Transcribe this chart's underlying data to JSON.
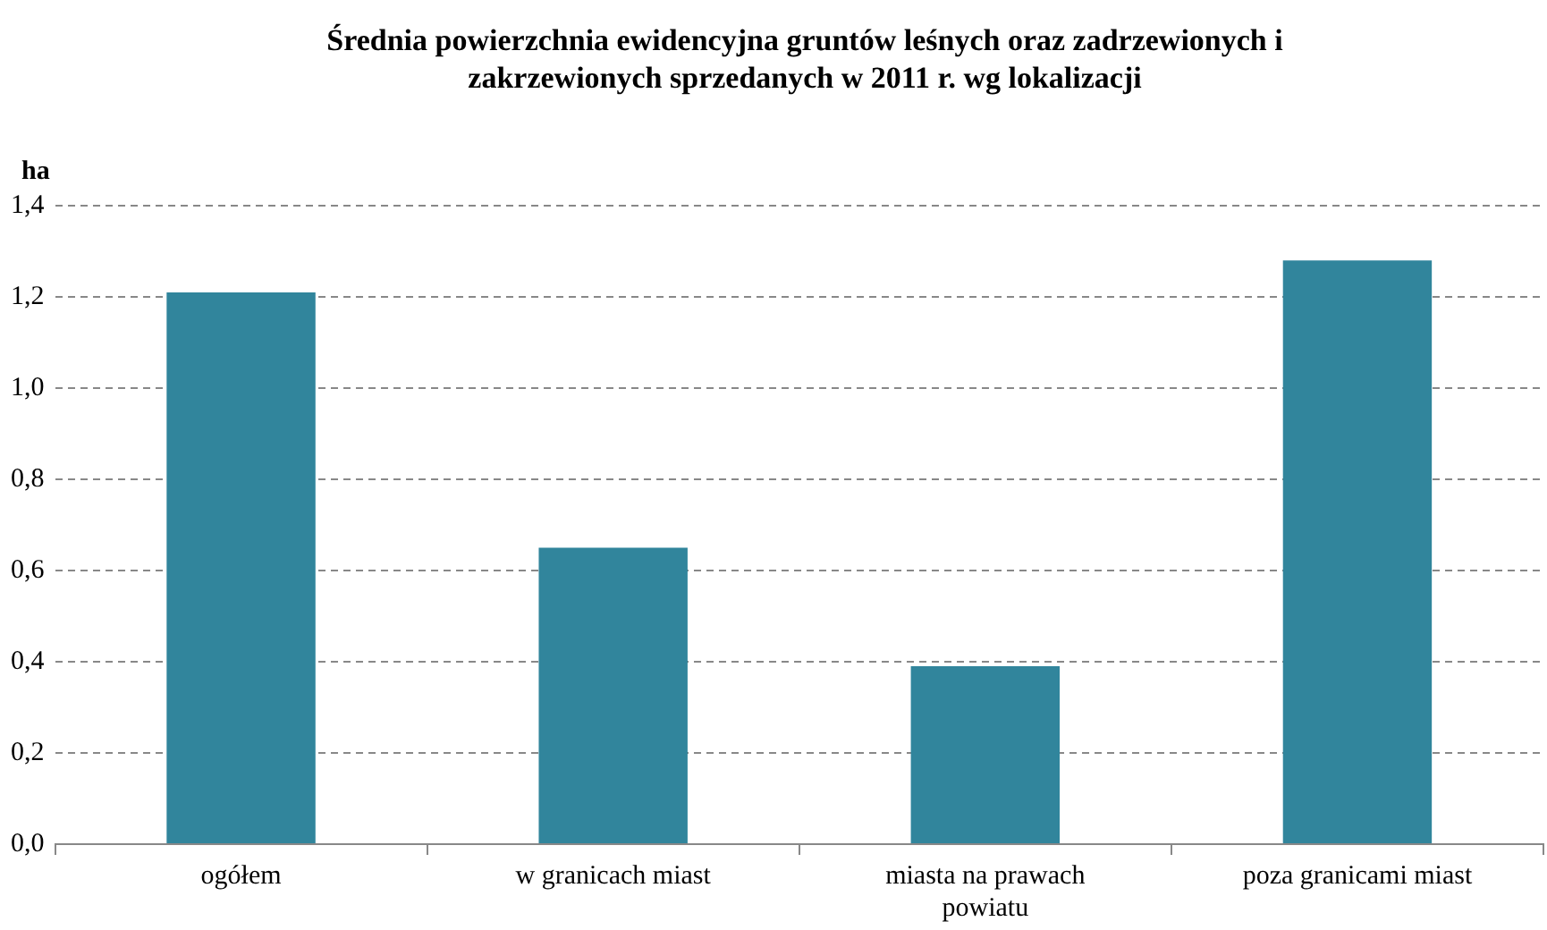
{
  "chart_data": {
    "type": "bar",
    "title": "Średnia powierzchnia ewidencyjna gruntów leśnych oraz zadrzewionych i zakrzewionych sprzedanych w 2011 r. wg lokalizacji",
    "ylabel": "ha",
    "categories": [
      "ogółem",
      "w granicach miast",
      "miasta na prawach powiatu",
      "poza granicami miast"
    ],
    "values": [
      1.21,
      0.65,
      0.39,
      1.28
    ],
    "color": "#31859c",
    "ylim": [
      0,
      1.4
    ],
    "yticks": [
      {
        "value": 0,
        "label": "0,0"
      },
      {
        "value": 0.2,
        "label": "0,2"
      },
      {
        "value": 0.4,
        "label": "0,4"
      },
      {
        "value": 0.6,
        "label": "0,6"
      },
      {
        "value": 0.8,
        "label": "0,8"
      },
      {
        "value": 1.0,
        "label": "1,0"
      },
      {
        "value": 1.2,
        "label": "1,2"
      },
      {
        "value": 1.4,
        "label": "1,4"
      }
    ],
    "grid": "y",
    "legend": false
  }
}
